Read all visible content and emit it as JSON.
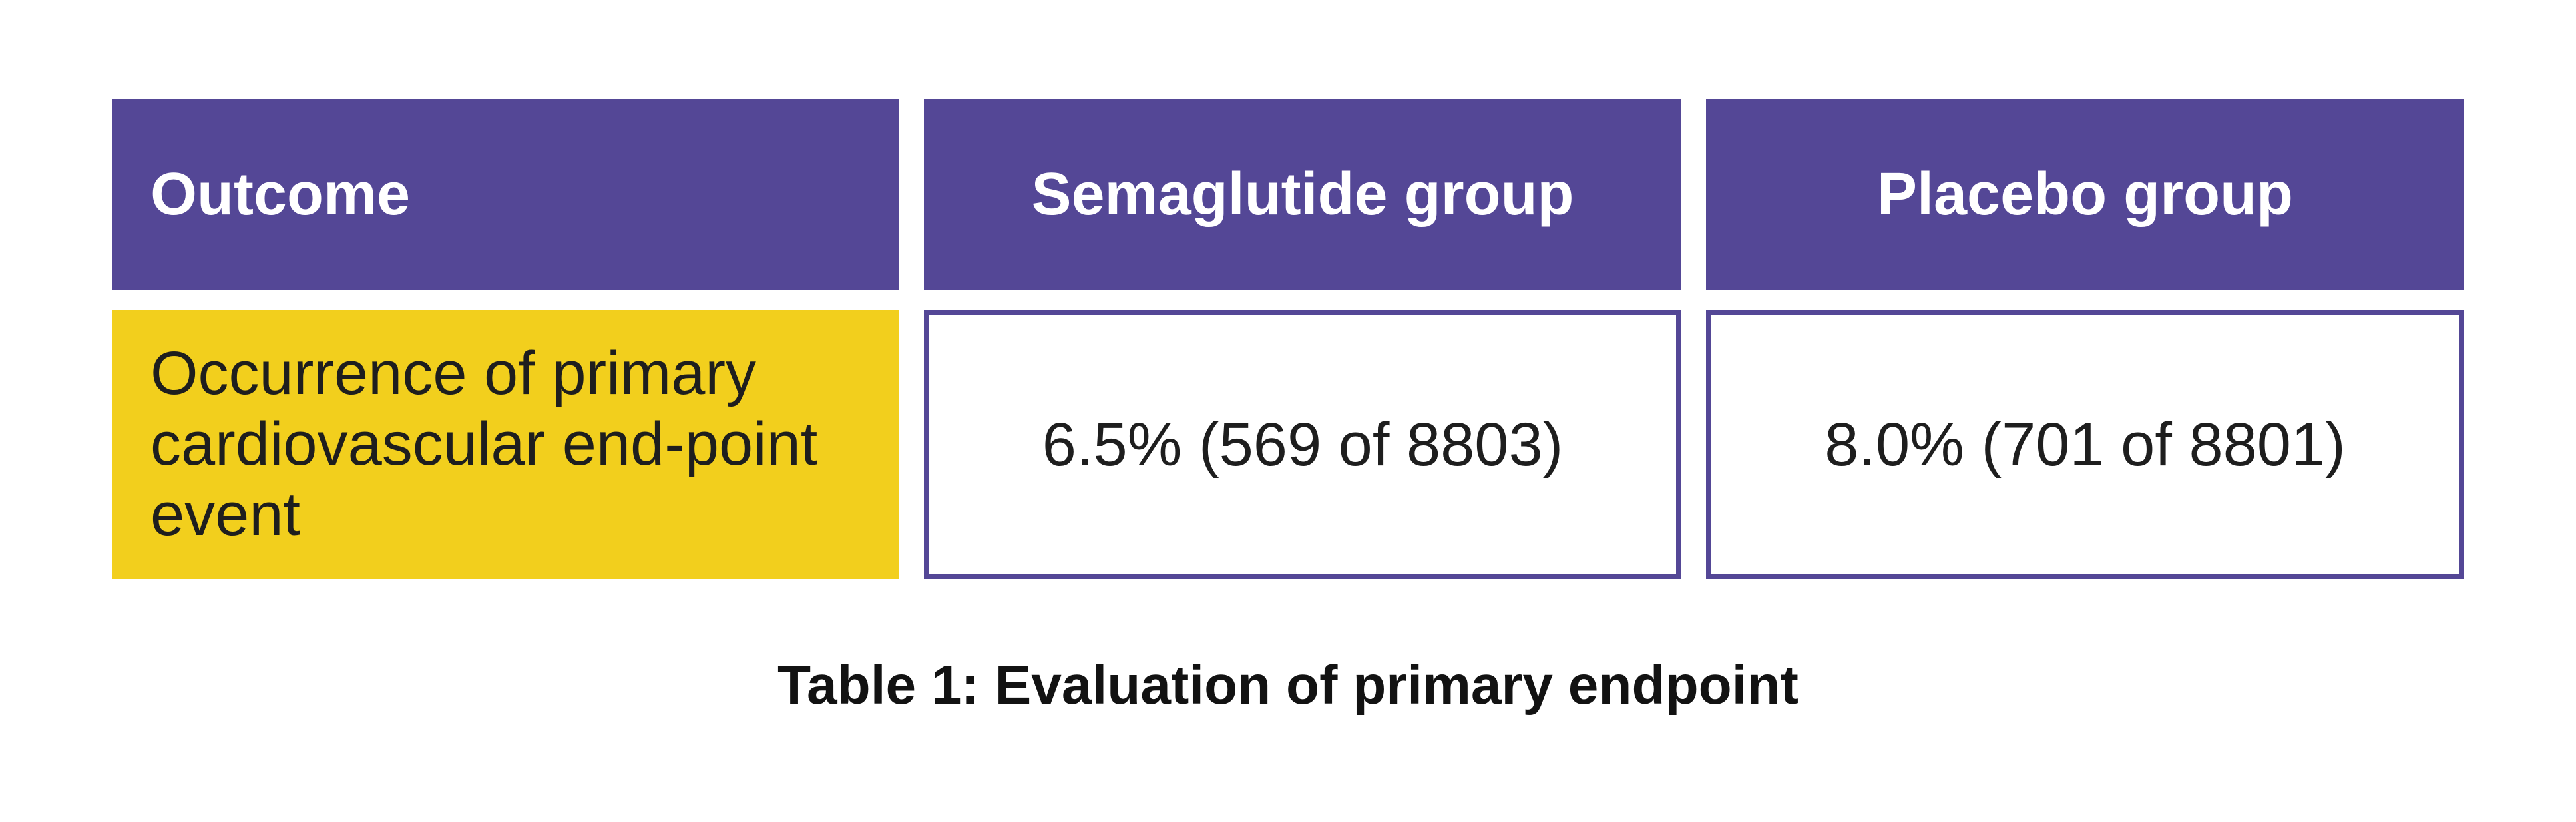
{
  "chart_data": {
    "type": "table",
    "title": "Table 1: Evaluation of primary endpoint",
    "columns": [
      "Outcome",
      "Semaglutide group",
      "Placebo group"
    ],
    "rows": [
      [
        "Occurrence of primary cardiovascular end-point event",
        "6.5% (569 of 8803)",
        "8.0% (701 of 8801)"
      ]
    ],
    "values": {
      "semaglutide": {
        "percent": 6.5,
        "events": 569,
        "total": 8803
      },
      "placebo": {
        "percent": 8.0,
        "events": 701,
        "total": 8801
      }
    },
    "layout_hints": {
      "header_fill": "purple",
      "outcome_cell_fill": "yellow",
      "value_cells": "white with purple border",
      "caption_position": "bottom-center"
    }
  },
  "header": {
    "outcome": "Outcome",
    "semaglutide": "Semaglutide group",
    "placebo": "Placebo group"
  },
  "row": {
    "outcome_line1": "Occurrence of primary",
    "outcome_line2": "cardiovascular end-point",
    "outcome_line3": "event",
    "semaglutide_value": "6.5% (569 of 8803)",
    "placebo_value": "8.0% (701 of 8801)"
  },
  "caption": "Table 1: Evaluation of primary endpoint",
  "colors": {
    "header_purple": "#544796",
    "border_purple": "#544796",
    "highlight_yellow": "#F2CF1D",
    "header_text": "#FFFFFF",
    "body_text": "#1E1E1E"
  }
}
